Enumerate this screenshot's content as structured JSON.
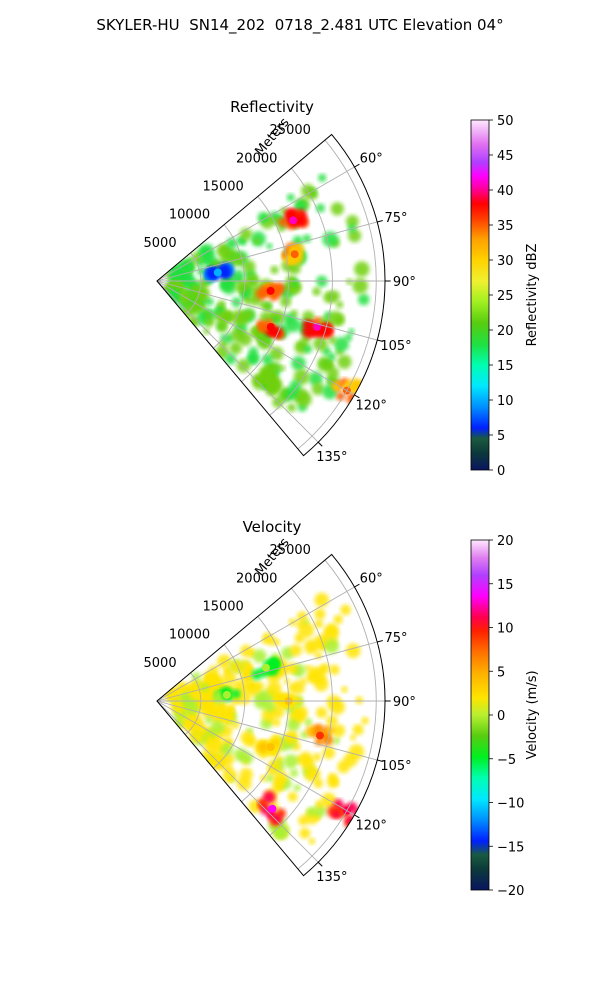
{
  "title": "SKYLER-HU  SN14_202  0718_2.481 UTC Elevation 04°",
  "panels": [
    {
      "title": "Reflectivity",
      "range_axis_label": "Meters",
      "range_ticks": [
        "5000",
        "10000",
        "15000",
        "20000",
        "25000"
      ],
      "azimuth_ticks": [
        "60°",
        "75°",
        "90°",
        "105°",
        "120°",
        "135°"
      ],
      "colorbar": {
        "label": "Reflectivity dBZ",
        "min": 0,
        "max": 50,
        "ticks": [
          "0",
          "5",
          "10",
          "15",
          "20",
          "25",
          "30",
          "35",
          "40",
          "45",
          "50"
        ]
      }
    },
    {
      "title": "Velocity",
      "range_axis_label": "Meters",
      "range_ticks": [
        "5000",
        "10000",
        "15000",
        "20000",
        "25000"
      ],
      "azimuth_ticks": [
        "60°",
        "75°",
        "90°",
        "105°",
        "120°",
        "135°"
      ],
      "colorbar": {
        "label": "Velocity (m/s)",
        "min": -20,
        "max": 20,
        "ticks": [
          "−20",
          "−15",
          "−10",
          "−5",
          "0",
          "5",
          "10",
          "15",
          "20"
        ]
      }
    }
  ],
  "chart_data": [
    {
      "type": "heatmap",
      "projection": "polar-sector",
      "title": "Reflectivity",
      "range_label": "Meters",
      "range_max": 26000,
      "range_ticks": [
        5000,
        10000,
        15000,
        20000,
        25000
      ],
      "azimuth_range_deg": [
        50,
        140
      ],
      "azimuth_ticks_deg": [
        60,
        75,
        90,
        105,
        120,
        135
      ],
      "colorbar": {
        "label": "Reflectivity dBZ",
        "range": [
          0,
          50
        ]
      },
      "echo_cells": [
        {
          "azimuth_deg": 66,
          "range_m": 17000,
          "value": 40
        },
        {
          "azimuth_deg": 79,
          "range_m": 16000,
          "value": 35
        },
        {
          "azimuth_deg": 95,
          "range_m": 13000,
          "value": 37
        },
        {
          "azimuth_deg": 106,
          "range_m": 19000,
          "value": 40
        },
        {
          "azimuth_deg": 112,
          "range_m": 14000,
          "value": 38
        },
        {
          "azimuth_deg": 82,
          "range_m": 7000,
          "value": 12
        },
        {
          "azimuth_deg": 120,
          "range_m": 25000,
          "value": 35
        },
        {
          "azimuth_deg": 132,
          "range_m": 17000,
          "value": 25
        }
      ]
    },
    {
      "type": "heatmap",
      "projection": "polar-sector",
      "title": "Velocity",
      "range_label": "Meters",
      "range_max": 26000,
      "range_ticks": [
        5000,
        10000,
        15000,
        20000,
        25000
      ],
      "azimuth_range_deg": [
        50,
        140
      ],
      "azimuth_ticks_deg": [
        60,
        75,
        90,
        105,
        120,
        135
      ],
      "colorbar": {
        "label": "Velocity (m/s)",
        "range": [
          -20,
          20
        ]
      },
      "echo_cells": [
        {
          "azimuth_deg": 73,
          "range_m": 13000,
          "value": -3
        },
        {
          "azimuth_deg": 85,
          "range_m": 8000,
          "value": -2
        },
        {
          "azimuth_deg": 90,
          "range_m": 15000,
          "value": 3
        },
        {
          "azimuth_deg": 102,
          "range_m": 19000,
          "value": 9
        },
        {
          "azimuth_deg": 112,
          "range_m": 14000,
          "value": 5
        },
        {
          "azimuth_deg": 120,
          "range_m": 25000,
          "value": 14
        },
        {
          "azimuth_deg": 133,
          "range_m": 18000,
          "value": 15
        }
      ]
    }
  ]
}
